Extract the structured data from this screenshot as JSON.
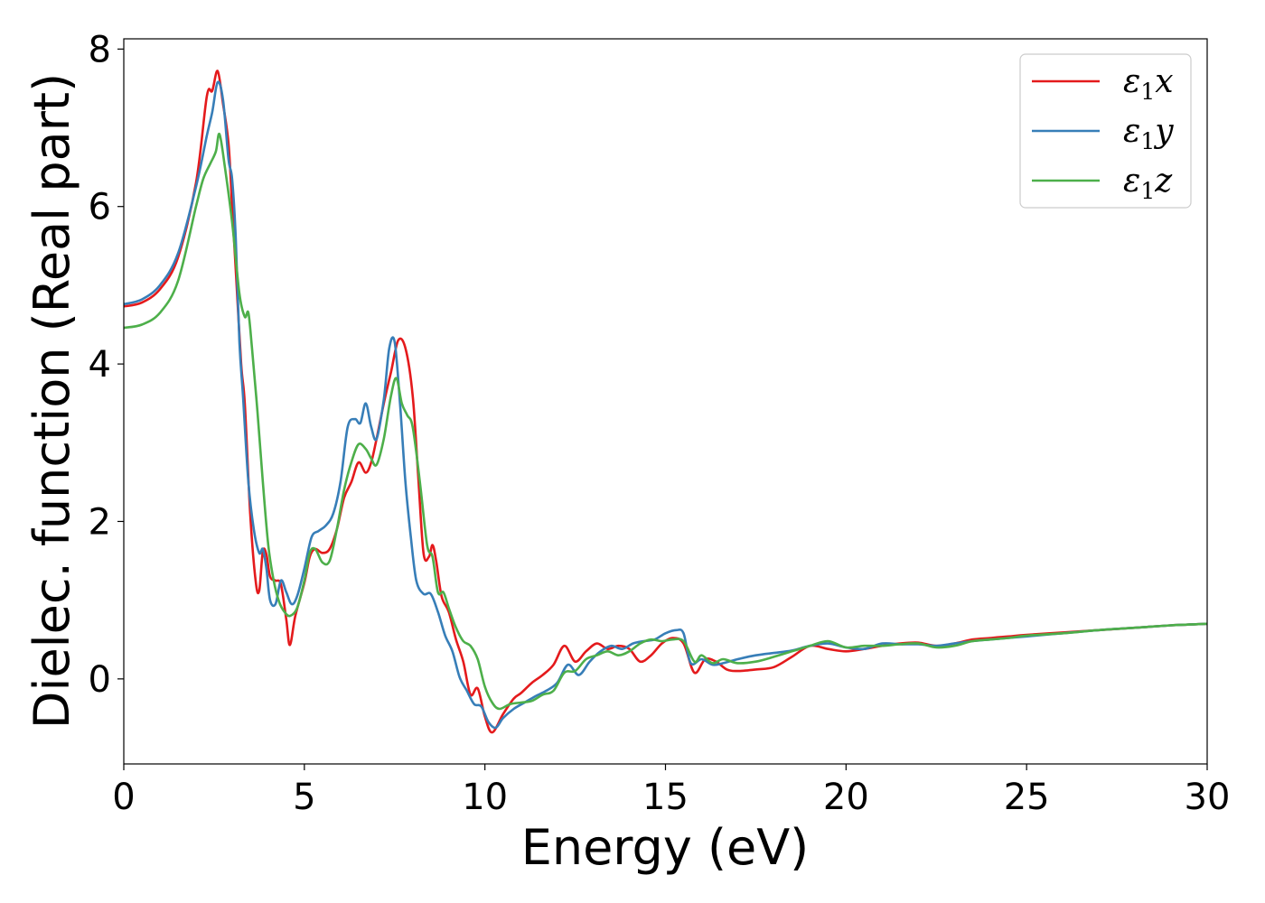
{
  "chart_data": {
    "type": "line",
    "title": "",
    "xlabel": "Energy (eV)",
    "ylabel": "Dielec. function (Real part)",
    "xlim": [
      0,
      30
    ],
    "ylim": [
      -1.08,
      8.13
    ],
    "xticks": [
      0,
      5,
      10,
      15,
      20,
      25,
      30
    ],
    "yticks": [
      0,
      2,
      4,
      6,
      8
    ],
    "grid": false,
    "legend_position": "top-right",
    "series": [
      {
        "name": "ε₁x",
        "legend_base": "ε",
        "legend_sub": "1",
        "legend_var": "x",
        "color": "#e41a1c",
        "points": [
          [
            0,
            4.73
          ],
          [
            0.5,
            4.78
          ],
          [
            1.0,
            4.95
          ],
          [
            1.5,
            5.35
          ],
          [
            2.0,
            6.3
          ],
          [
            2.3,
            7.4
          ],
          [
            2.45,
            7.47
          ],
          [
            2.6,
            7.72
          ],
          [
            2.75,
            7.3
          ],
          [
            2.9,
            6.8
          ],
          [
            3.0,
            6.0
          ],
          [
            3.1,
            5.2
          ],
          [
            3.25,
            4.0
          ],
          [
            3.35,
            3.5
          ],
          [
            3.5,
            2.1
          ],
          [
            3.65,
            1.25
          ],
          [
            3.75,
            1.12
          ],
          [
            3.85,
            1.62
          ],
          [
            3.95,
            1.58
          ],
          [
            4.05,
            1.3
          ],
          [
            4.2,
            1.25
          ],
          [
            4.35,
            1.2
          ],
          [
            4.5,
            0.75
          ],
          [
            4.6,
            0.43
          ],
          [
            4.75,
            0.8
          ],
          [
            5.0,
            1.22
          ],
          [
            5.15,
            1.55
          ],
          [
            5.3,
            1.65
          ],
          [
            5.5,
            1.6
          ],
          [
            5.7,
            1.65
          ],
          [
            5.9,
            1.9
          ],
          [
            6.1,
            2.3
          ],
          [
            6.3,
            2.5
          ],
          [
            6.5,
            2.75
          ],
          [
            6.7,
            2.62
          ],
          [
            6.85,
            2.75
          ],
          [
            7.0,
            3.05
          ],
          [
            7.2,
            3.5
          ],
          [
            7.4,
            3.9
          ],
          [
            7.6,
            4.3
          ],
          [
            7.8,
            4.2
          ],
          [
            8.0,
            3.6
          ],
          [
            8.15,
            2.6
          ],
          [
            8.3,
            1.6
          ],
          [
            8.45,
            1.55
          ],
          [
            8.55,
            1.7
          ],
          [
            8.65,
            1.5
          ],
          [
            8.8,
            1.05
          ],
          [
            9.0,
            0.85
          ],
          [
            9.2,
            0.5
          ],
          [
            9.4,
            0.22
          ],
          [
            9.6,
            -0.2
          ],
          [
            9.8,
            -0.12
          ],
          [
            10.0,
            -0.48
          ],
          [
            10.2,
            -0.68
          ],
          [
            10.5,
            -0.45
          ],
          [
            10.8,
            -0.25
          ],
          [
            11.0,
            -0.18
          ],
          [
            11.3,
            -0.05
          ],
          [
            11.6,
            0.05
          ],
          [
            11.9,
            0.18
          ],
          [
            12.2,
            0.42
          ],
          [
            12.5,
            0.22
          ],
          [
            12.8,
            0.35
          ],
          [
            13.1,
            0.45
          ],
          [
            13.4,
            0.38
          ],
          [
            13.7,
            0.42
          ],
          [
            14.0,
            0.38
          ],
          [
            14.3,
            0.22
          ],
          [
            14.6,
            0.3
          ],
          [
            14.9,
            0.45
          ],
          [
            15.2,
            0.52
          ],
          [
            15.5,
            0.45
          ],
          [
            15.8,
            0.08
          ],
          [
            16.1,
            0.25
          ],
          [
            16.4,
            0.22
          ],
          [
            16.7,
            0.12
          ],
          [
            17.0,
            0.1
          ],
          [
            17.5,
            0.12
          ],
          [
            18.0,
            0.15
          ],
          [
            18.5,
            0.28
          ],
          [
            19.0,
            0.42
          ],
          [
            19.5,
            0.38
          ],
          [
            20.0,
            0.35
          ],
          [
            20.5,
            0.38
          ],
          [
            21.0,
            0.42
          ],
          [
            21.5,
            0.45
          ],
          [
            22.0,
            0.46
          ],
          [
            22.5,
            0.42
          ],
          [
            23.0,
            0.45
          ],
          [
            23.5,
            0.5
          ],
          [
            24.0,
            0.52
          ],
          [
            24.5,
            0.54
          ],
          [
            25.0,
            0.56
          ],
          [
            26.0,
            0.59
          ],
          [
            27.0,
            0.62
          ],
          [
            28.0,
            0.65
          ],
          [
            29.0,
            0.68
          ],
          [
            30.0,
            0.7
          ]
        ]
      },
      {
        "name": "ε₁y",
        "legend_base": "ε",
        "legend_sub": "1",
        "legend_var": "y",
        "color": "#377eb8",
        "points": [
          [
            0,
            4.76
          ],
          [
            0.5,
            4.82
          ],
          [
            1.0,
            5.0
          ],
          [
            1.5,
            5.4
          ],
          [
            2.0,
            6.25
          ],
          [
            2.3,
            6.9
          ],
          [
            2.45,
            7.2
          ],
          [
            2.6,
            7.58
          ],
          [
            2.75,
            7.35
          ],
          [
            2.9,
            6.6
          ],
          [
            3.0,
            6.35
          ],
          [
            3.1,
            5.6
          ],
          [
            3.2,
            4.3
          ],
          [
            3.3,
            3.6
          ],
          [
            3.45,
            2.5
          ],
          [
            3.6,
            1.9
          ],
          [
            3.75,
            1.6
          ],
          [
            3.85,
            1.65
          ],
          [
            3.95,
            1.4
          ],
          [
            4.05,
            1.0
          ],
          [
            4.2,
            0.95
          ],
          [
            4.35,
            1.25
          ],
          [
            4.5,
            1.1
          ],
          [
            4.65,
            0.95
          ],
          [
            4.8,
            1.05
          ],
          [
            5.0,
            1.4
          ],
          [
            5.2,
            1.8
          ],
          [
            5.4,
            1.88
          ],
          [
            5.6,
            1.95
          ],
          [
            5.8,
            2.1
          ],
          [
            6.0,
            2.5
          ],
          [
            6.2,
            3.2
          ],
          [
            6.4,
            3.3
          ],
          [
            6.55,
            3.25
          ],
          [
            6.7,
            3.5
          ],
          [
            6.85,
            3.2
          ],
          [
            7.0,
            3.05
          ],
          [
            7.2,
            3.55
          ],
          [
            7.35,
            4.2
          ],
          [
            7.5,
            4.28
          ],
          [
            7.65,
            3.5
          ],
          [
            7.8,
            2.5
          ],
          [
            7.95,
            1.8
          ],
          [
            8.1,
            1.25
          ],
          [
            8.3,
            1.08
          ],
          [
            8.5,
            1.08
          ],
          [
            8.7,
            0.85
          ],
          [
            8.9,
            0.55
          ],
          [
            9.1,
            0.35
          ],
          [
            9.3,
            0.02
          ],
          [
            9.5,
            -0.15
          ],
          [
            9.7,
            -0.32
          ],
          [
            9.9,
            -0.35
          ],
          [
            10.1,
            -0.55
          ],
          [
            10.3,
            -0.62
          ],
          [
            10.5,
            -0.5
          ],
          [
            10.8,
            -0.38
          ],
          [
            11.1,
            -0.3
          ],
          [
            11.4,
            -0.22
          ],
          [
            11.7,
            -0.15
          ],
          [
            12.0,
            -0.05
          ],
          [
            12.3,
            0.18
          ],
          [
            12.6,
            0.05
          ],
          [
            12.9,
            0.22
          ],
          [
            13.2,
            0.35
          ],
          [
            13.5,
            0.42
          ],
          [
            13.8,
            0.38
          ],
          [
            14.1,
            0.45
          ],
          [
            14.4,
            0.48
          ],
          [
            14.7,
            0.5
          ],
          [
            15.0,
            0.58
          ],
          [
            15.3,
            0.62
          ],
          [
            15.5,
            0.58
          ],
          [
            15.7,
            0.2
          ],
          [
            16.0,
            0.25
          ],
          [
            16.3,
            0.18
          ],
          [
            16.6,
            0.2
          ],
          [
            17.0,
            0.25
          ],
          [
            17.5,
            0.3
          ],
          [
            18.0,
            0.33
          ],
          [
            18.5,
            0.36
          ],
          [
            19.0,
            0.42
          ],
          [
            19.5,
            0.45
          ],
          [
            20.0,
            0.4
          ],
          [
            20.5,
            0.38
          ],
          [
            21.0,
            0.45
          ],
          [
            21.5,
            0.44
          ],
          [
            22.0,
            0.44
          ],
          [
            22.5,
            0.42
          ],
          [
            23.0,
            0.45
          ],
          [
            23.5,
            0.48
          ],
          [
            24.0,
            0.5
          ],
          [
            24.5,
            0.52
          ],
          [
            25.0,
            0.54
          ],
          [
            26.0,
            0.58
          ],
          [
            27.0,
            0.62
          ],
          [
            28.0,
            0.65
          ],
          [
            29.0,
            0.68
          ],
          [
            30.0,
            0.7
          ]
        ]
      },
      {
        "name": "ε₁z",
        "legend_base": "ε",
        "legend_sub": "1",
        "legend_var": "z",
        "color": "#4daf4a",
        "points": [
          [
            0,
            4.46
          ],
          [
            0.5,
            4.5
          ],
          [
            1.0,
            4.65
          ],
          [
            1.5,
            5.05
          ],
          [
            2.0,
            6.0
          ],
          [
            2.2,
            6.35
          ],
          [
            2.4,
            6.55
          ],
          [
            2.55,
            6.7
          ],
          [
            2.65,
            6.92
          ],
          [
            2.8,
            6.5
          ],
          [
            3.0,
            5.8
          ],
          [
            3.2,
            4.9
          ],
          [
            3.35,
            4.6
          ],
          [
            3.45,
            4.65
          ],
          [
            3.55,
            4.2
          ],
          [
            3.7,
            3.4
          ],
          [
            3.85,
            2.5
          ],
          [
            4.0,
            1.7
          ],
          [
            4.15,
            1.25
          ],
          [
            4.3,
            0.98
          ],
          [
            4.45,
            0.85
          ],
          [
            4.6,
            0.8
          ],
          [
            4.8,
            0.9
          ],
          [
            5.0,
            1.25
          ],
          [
            5.15,
            1.6
          ],
          [
            5.3,
            1.65
          ],
          [
            5.5,
            1.48
          ],
          [
            5.7,
            1.5
          ],
          [
            5.9,
            1.9
          ],
          [
            6.1,
            2.4
          ],
          [
            6.3,
            2.75
          ],
          [
            6.5,
            2.98
          ],
          [
            6.7,
            2.92
          ],
          [
            6.85,
            2.8
          ],
          [
            7.0,
            2.72
          ],
          [
            7.2,
            3.05
          ],
          [
            7.4,
            3.6
          ],
          [
            7.55,
            3.82
          ],
          [
            7.7,
            3.5
          ],
          [
            7.85,
            3.35
          ],
          [
            8.0,
            3.2
          ],
          [
            8.2,
            2.5
          ],
          [
            8.4,
            1.7
          ],
          [
            8.55,
            1.55
          ],
          [
            8.7,
            1.1
          ],
          [
            8.85,
            1.1
          ],
          [
            9.0,
            0.9
          ],
          [
            9.2,
            0.65
          ],
          [
            9.4,
            0.48
          ],
          [
            9.6,
            0.42
          ],
          [
            9.8,
            0.25
          ],
          [
            10.0,
            -0.1
          ],
          [
            10.2,
            -0.3
          ],
          [
            10.4,
            -0.38
          ],
          [
            10.7,
            -0.32
          ],
          [
            11.0,
            -0.3
          ],
          [
            11.3,
            -0.28
          ],
          [
            11.6,
            -0.2
          ],
          [
            11.9,
            -0.15
          ],
          [
            12.2,
            0.08
          ],
          [
            12.5,
            0.1
          ],
          [
            12.8,
            0.25
          ],
          [
            13.1,
            0.3
          ],
          [
            13.4,
            0.35
          ],
          [
            13.7,
            0.3
          ],
          [
            14.0,
            0.35
          ],
          [
            14.3,
            0.45
          ],
          [
            14.6,
            0.5
          ],
          [
            14.9,
            0.48
          ],
          [
            15.2,
            0.5
          ],
          [
            15.5,
            0.48
          ],
          [
            15.8,
            0.22
          ],
          [
            16.0,
            0.3
          ],
          [
            16.3,
            0.2
          ],
          [
            16.6,
            0.25
          ],
          [
            17.0,
            0.2
          ],
          [
            17.5,
            0.22
          ],
          [
            18.0,
            0.28
          ],
          [
            18.5,
            0.35
          ],
          [
            19.0,
            0.42
          ],
          [
            19.5,
            0.48
          ],
          [
            20.0,
            0.4
          ],
          [
            20.5,
            0.42
          ],
          [
            21.0,
            0.42
          ],
          [
            21.5,
            0.44
          ],
          [
            22.0,
            0.45
          ],
          [
            22.5,
            0.4
          ],
          [
            23.0,
            0.42
          ],
          [
            23.5,
            0.48
          ],
          [
            24.0,
            0.5
          ],
          [
            24.5,
            0.52
          ],
          [
            25.0,
            0.55
          ],
          [
            26.0,
            0.58
          ],
          [
            27.0,
            0.62
          ],
          [
            28.0,
            0.65
          ],
          [
            29.0,
            0.68
          ],
          [
            30.0,
            0.7
          ]
        ]
      }
    ]
  }
}
